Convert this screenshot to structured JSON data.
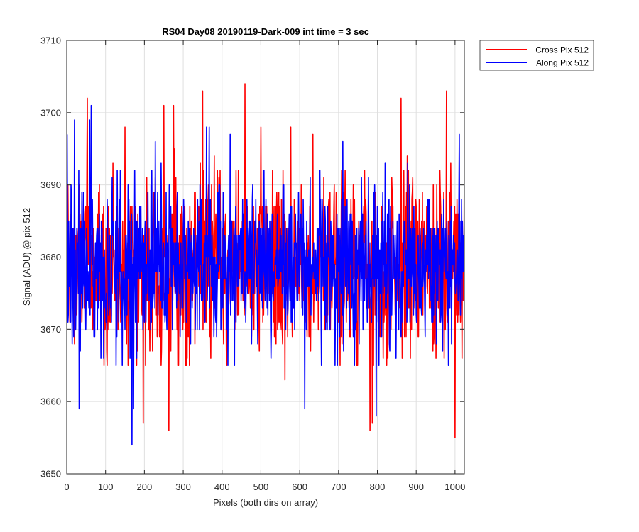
{
  "chart_data": {
    "type": "line",
    "title": "RS04 Day08 20190119-Dark-009 int time = 3 sec",
    "xlabel": "Pixels (both dirs on array)",
    "ylabel": "Signal (ADU) @ pix 512",
    "xlim": [
      0,
      1024
    ],
    "ylim": [
      3650,
      3710
    ],
    "xticks": [
      0,
      100,
      200,
      300,
      400,
      500,
      600,
      700,
      800,
      900,
      1000
    ],
    "yticks": [
      3650,
      3660,
      3670,
      3680,
      3690,
      3700,
      3710
    ],
    "grid": true,
    "legend_position": "outside-top-right",
    "series": [
      {
        "name": "Cross Pix 512",
        "color": "#ff0000",
        "x_start": 1,
        "x_step": 1,
        "n_points": 1024,
        "mean": 3679,
        "noise_sd": 6,
        "x": [
          53,
          150,
          197,
          250,
          263,
          275,
          350,
          459,
          500,
          562,
          577,
          634,
          781,
          787,
          861,
          978,
          1000,
          1024
        ],
        "y": [
          3702,
          3698,
          3657,
          3701,
          3656,
          3701,
          3703,
          3704,
          3698,
          3663,
          3698,
          3697,
          3656,
          3657,
          3702,
          3703,
          3655,
          3696
        ]
      },
      {
        "name": "Along Pix 512",
        "color": "#0000ff",
        "x_start": 1,
        "x_step": 1,
        "n_points": 1024,
        "mean": 3679,
        "noise_sd": 5.5,
        "x": [
          1,
          20,
          32,
          59,
          63,
          168,
          172,
          360,
          367,
          421,
          613,
          797,
          1011
        ],
        "y": [
          3697,
          3699,
          3659,
          3699,
          3701,
          3654,
          3659,
          3698,
          3698,
          3697,
          3659,
          3658,
          3697
        ]
      }
    ]
  }
}
